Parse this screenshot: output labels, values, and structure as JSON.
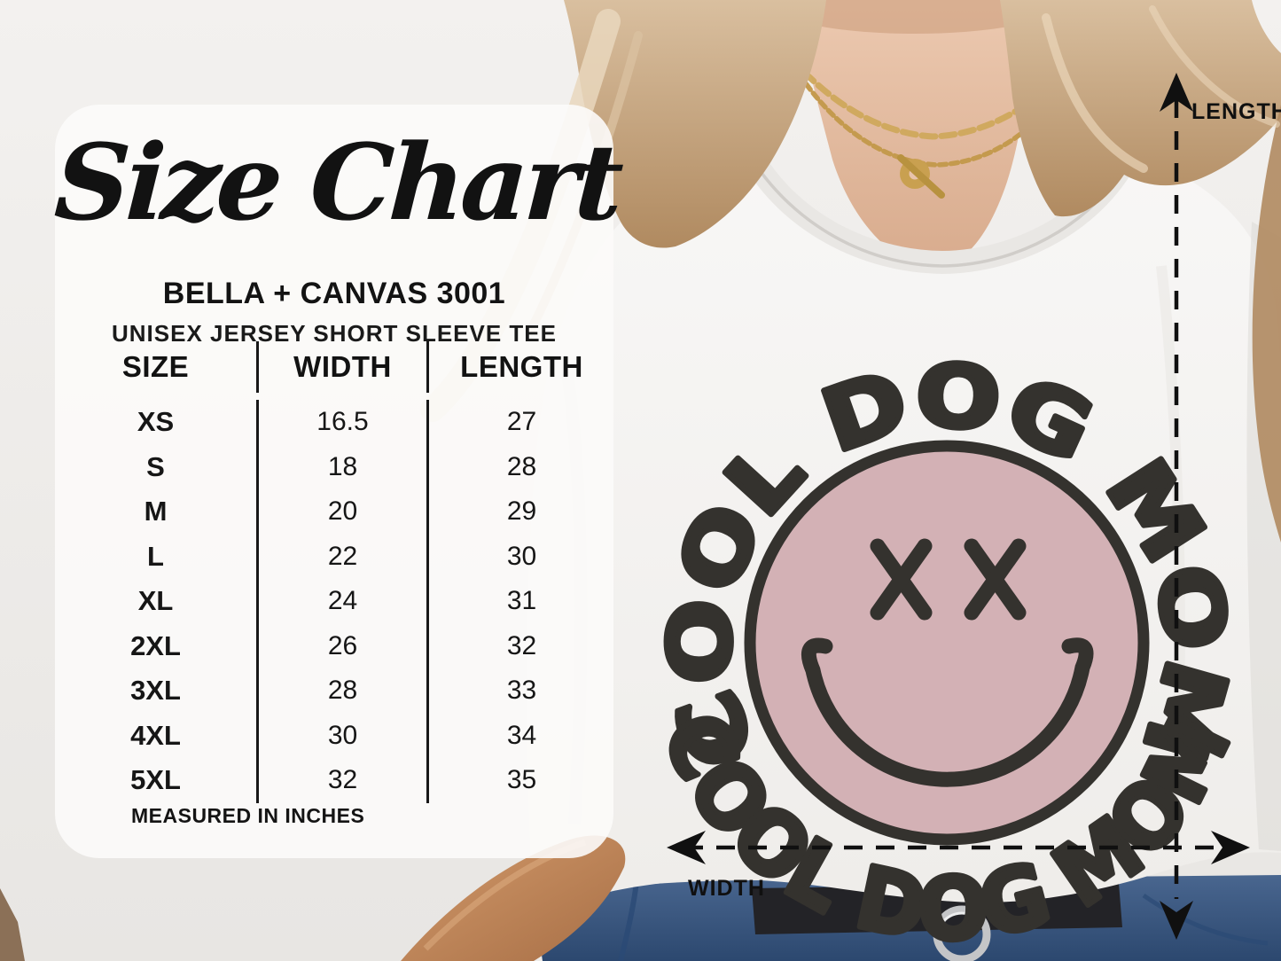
{
  "size_card": {
    "title": "Size Chart",
    "brand": "BELLA + CANVAS 3001",
    "product": "UNISEX JERSEY SHORT SLEEVE TEE",
    "columns": [
      "SIZE",
      "WIDTH",
      "LENGTH"
    ],
    "rows": [
      {
        "size": "XS",
        "width": "16.5",
        "length": "27"
      },
      {
        "size": "S",
        "width": "18",
        "length": "28"
      },
      {
        "size": "M",
        "width": "20",
        "length": "29"
      },
      {
        "size": "L",
        "width": "22",
        "length": "30"
      },
      {
        "size": "XL",
        "width": "24",
        "length": "31"
      },
      {
        "size": "2XL",
        "width": "26",
        "length": "32"
      },
      {
        "size": "3XL",
        "width": "28",
        "length": "33"
      },
      {
        "size": "4XL",
        "width": "30",
        "length": "34"
      },
      {
        "size": "5XL",
        "width": "32",
        "length": "35"
      }
    ],
    "footnote": "MEASURED IN INCHES"
  },
  "measurement_labels": {
    "length": "LENGTH",
    "width": "WIDTH"
  },
  "tshirt_design": {
    "arc_text_top": "COOL DOG MOM",
    "arc_text_bottom": "COOL DOG MOM",
    "eyes": "X X",
    "face_color": "#d3b1b5",
    "ink_color": "#34322e"
  },
  "photo_palette": {
    "background": "#f0eeec",
    "tee_white": "#f6f5f3",
    "hair_blonde": "#c7a87f",
    "skin": "#e3bba2",
    "jeans_blue": "#3f5d8a",
    "belt_black": "#232327",
    "necklace_gold": "#c79b4e",
    "measure_line": "#101010"
  },
  "chart_data": {
    "type": "table",
    "title": "Size Chart",
    "subtitle": "BELLA + CANVAS 3001 — UNISEX JERSEY SHORT SLEEVE TEE",
    "columns": [
      "SIZE",
      "WIDTH",
      "LENGTH"
    ],
    "units": "inches",
    "rows": [
      [
        "XS",
        16.5,
        27
      ],
      [
        "S",
        18,
        28
      ],
      [
        "M",
        20,
        29
      ],
      [
        "L",
        22,
        30
      ],
      [
        "XL",
        24,
        31
      ],
      [
        "2XL",
        26,
        32
      ],
      [
        "3XL",
        28,
        33
      ],
      [
        "4XL",
        30,
        34
      ],
      [
        "5XL",
        32,
        35
      ]
    ]
  }
}
